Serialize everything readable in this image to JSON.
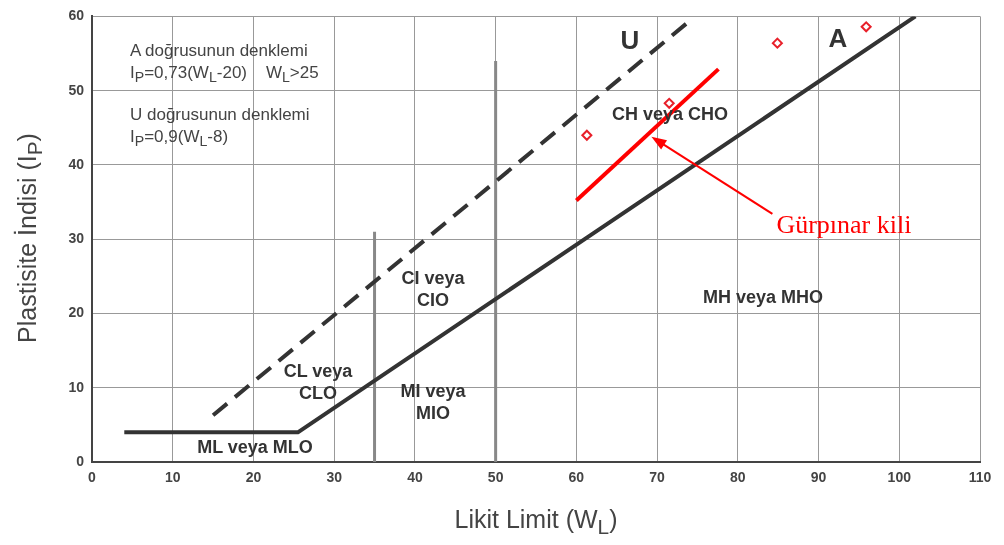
{
  "chart_data": {
    "type": "line",
    "xlabel": "Likit Limit (W$_{L}$)",
    "ylabel": "Plastisite İndisi (I$_{P}$)",
    "xlim": [
      0,
      110
    ],
    "xticks": [
      0,
      10,
      20,
      30,
      40,
      50,
      60,
      70,
      80,
      90,
      100,
      110
    ],
    "ylim": [
      0,
      60
    ],
    "yticks": [
      0,
      10,
      20,
      30,
      40,
      50,
      60
    ],
    "grid": true,
    "legend": false,
    "series": [
      {
        "color": "#333333",
        "line_style": "solid",
        "marker": "none",
        "x": [
          4,
          25.5,
          102
        ],
        "values": [
          4,
          4,
          60
        ]
      },
      {
        "color": "#333333",
        "line_style": "dashed",
        "marker": "none",
        "x": [
          15,
          73.6
        ],
        "values": [
          6.3,
          59
        ]
      },
      {
        "color": "#888888",
        "line_style": "solid",
        "marker": "none",
        "x": [
          35,
          35
        ],
        "values": [
          0,
          31
        ]
      },
      {
        "color": "#888888",
        "line_style": "solid",
        "marker": "none",
        "x": [
          50,
          50
        ],
        "values": [
          0,
          54
        ]
      },
      {
        "name": "Gürpınar kili",
        "color": "#ff0000",
        "line_style": "solid",
        "marker": "none",
        "x": [
          60,
          77.6
        ],
        "values": [
          35.2,
          52.9
        ]
      },
      {
        "type": "scatter",
        "color": "#e8202a",
        "marker": "diamond",
        "x": [
          61.3,
          71.5,
          84.9,
          95.9
        ],
        "values": [
          44,
          48.3,
          56.4,
          58.6
        ]
      }
    ],
    "annotations": [
      "A doğrusunun denklemi",
      "I$_{P}$=0,73(W$_{L}$-20)    W$_{L}$>25",
      "U doğrusunun denklemi",
      "I$_{P}$=0,9(W$_{L}$-8)",
      "U",
      "A",
      "CH veya CHO",
      "CI veya\nCIO",
      "CL veya\nCLO",
      "MI veya\nMIO",
      "ML veya MLO",
      "MH veya MHO"
    ]
  }
}
